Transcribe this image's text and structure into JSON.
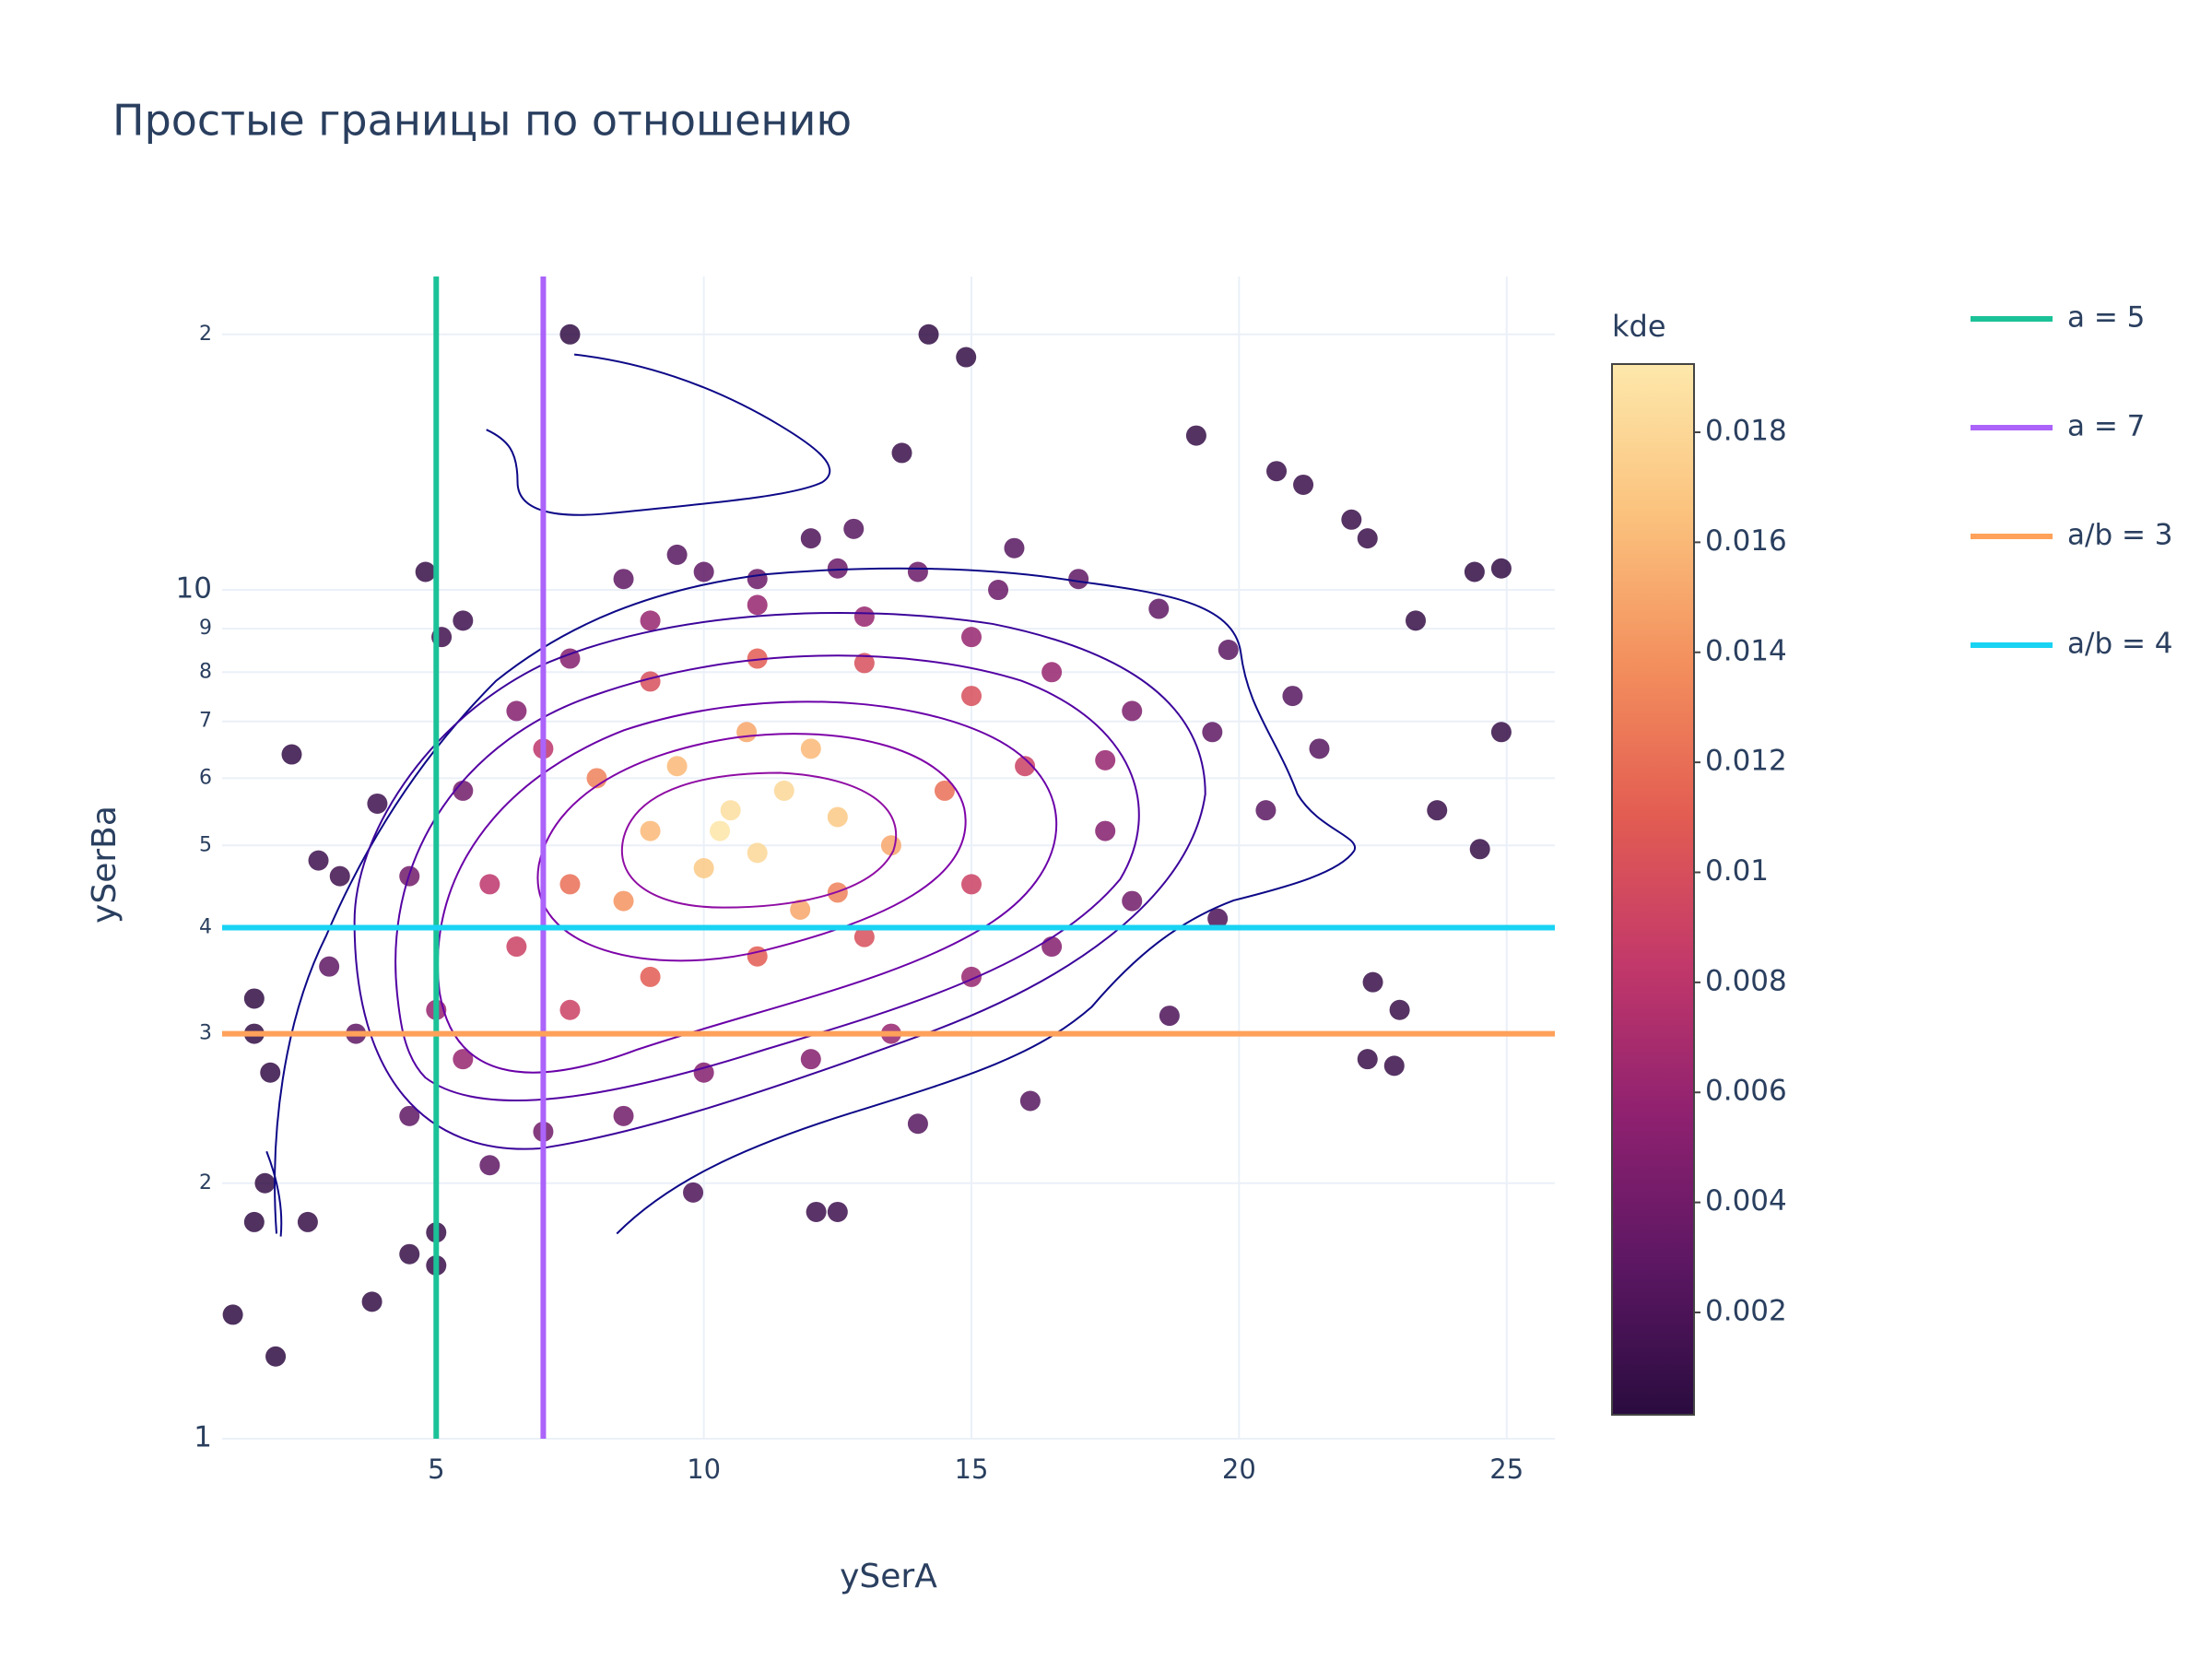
{
  "chart_data": {
    "type": "scatter",
    "title": "Простые границы по отношению",
    "x_label": "ySerA",
    "y_label": "ySerBa",
    "xlim": [
      1,
      25.9
    ],
    "xticks": [
      5,
      10,
      15,
      20,
      25
    ],
    "ylim": [
      1,
      23.4
    ],
    "y_log": true,
    "yticks": [
      1,
      2,
      3,
      4,
      5,
      6,
      7,
      8,
      9,
      10,
      {
        "value": 20,
        "label": "2"
      }
    ],
    "grid": true,
    "x": [
      7.5,
      14.2,
      14.9,
      19.2,
      13.7,
      12,
      4.8,
      5.5,
      5.1,
      24.4,
      24.9,
      23.3,
      22.4,
      22.1,
      20.7,
      21.2,
      2.3,
      1.6,
      1.6,
      1.9,
      1.8,
      1.6,
      1.2,
      2.0,
      3.8,
      5.0,
      5.0,
      4.5,
      2.6,
      12.1,
      12.5,
      9.8,
      23.7,
      24.5,
      23.0,
      22.5,
      22.4,
      22.9,
      24.9,
      19.6,
      18.7,
      16.1,
      14.0,
      3.9,
      2.8,
      3.2,
      8.5,
      10,
      11,
      12.5,
      14,
      15.5,
      17,
      18.5,
      19.8,
      21,
      21.5,
      20.5,
      19.5,
      18,
      17.5,
      18,
      16.5,
      15,
      13.5,
      12,
      10,
      8.5,
      7,
      6,
      4.5,
      3.5,
      3.0,
      4.5,
      5.5,
      6.5,
      7.5,
      9,
      11,
      13,
      15,
      16.5,
      17.5,
      12.8,
      15.8,
      9.5,
      7,
      6,
      5,
      5.5,
      7.5,
      9,
      11,
      13,
      15,
      16,
      15,
      13,
      11,
      9,
      8,
      7.5,
      6.5,
      14.5,
      12.5,
      9,
      9.5,
      10.5,
      11,
      11.5,
      10,
      12,
      12.5,
      10.8,
      13.5,
      8.5,
      11.8,
      10.3
    ],
    "y": [
      20,
      20,
      18.8,
      15.2,
      14.5,
      11.5,
      10.5,
      9.2,
      8.8,
      10.5,
      10.6,
      9.2,
      11.5,
      12.1,
      13.8,
      13.3,
      6.4,
      3.3,
      3.0,
      2.7,
      2.0,
      1.8,
      1.4,
      1.25,
      1.45,
      1.75,
      1.6,
      1.65,
      1.8,
      1.85,
      1.85,
      1.95,
      5.5,
      4.95,
      3.2,
      3.45,
      2.8,
      2.75,
      6.8,
      4.1,
      3.15,
      2.5,
      2.35,
      5.6,
      4.8,
      4.6,
      10.3,
      10.5,
      10.3,
      10.6,
      10.5,
      10,
      10.3,
      9.5,
      8.5,
      7.5,
      6.5,
      5.5,
      6.8,
      7.2,
      5.2,
      4.3,
      3.8,
      3.5,
      3.0,
      2.8,
      2.7,
      2.4,
      2.3,
      2.1,
      2.4,
      3.0,
      3.6,
      4.6,
      5.8,
      7.2,
      8.3,
      9.2,
      9.6,
      9.3,
      8.8,
      8.0,
      6.3,
      11.8,
      11.2,
      11,
      6.5,
      4.5,
      3.2,
      2.8,
      3.2,
      3.5,
      3.7,
      3.9,
      4.5,
      6.2,
      7.5,
      8.2,
      8.3,
      7.8,
      6.0,
      4.5,
      3.8,
      5.8,
      4.4,
      5.2,
      6.2,
      5.5,
      4.9,
      5.8,
      4.7,
      6.5,
      5.4,
      6.8,
      5.0,
      4.3,
      4.2,
      5.2
    ],
    "color_values": [
      0.0005,
      0.0005,
      0.0006,
      0.0008,
      0.001,
      0.002,
      0.0008,
      0.0012,
      0.0013,
      0.0005,
      0.0005,
      0.0008,
      0.0009,
      0.0009,
      0.001,
      0.001,
      0.0007,
      0.0005,
      0.0006,
      0.0007,
      0.0006,
      0.0005,
      0.0004,
      0.0004,
      0.0006,
      0.0009,
      0.0009,
      0.0008,
      0.0008,
      0.0012,
      0.0012,
      0.002,
      0.0009,
      0.0008,
      0.0009,
      0.0009,
      0.0009,
      0.0009,
      0.0008,
      0.002,
      0.002,
      0.0025,
      0.0025,
      0.0012,
      0.0012,
      0.0013,
      0.003,
      0.003,
      0.0035,
      0.0035,
      0.0035,
      0.0035,
      0.003,
      0.003,
      0.0028,
      0.0025,
      0.0025,
      0.0028,
      0.003,
      0.0045,
      0.005,
      0.004,
      0.005,
      0.006,
      0.006,
      0.005,
      0.005,
      0.004,
      0.004,
      0.003,
      0.003,
      0.003,
      0.003,
      0.004,
      0.004,
      0.005,
      0.005,
      0.006,
      0.006,
      0.006,
      0.006,
      0.006,
      0.006,
      0.0025,
      0.0025,
      0.0025,
      0.008,
      0.008,
      0.006,
      0.006,
      0.009,
      0.011,
      0.011,
      0.01,
      0.009,
      0.009,
      0.01,
      0.01,
      0.011,
      0.01,
      0.013,
      0.012,
      0.009,
      0.012,
      0.013,
      0.016,
      0.016,
      0.0185,
      0.018,
      0.018,
      0.017,
      0.016,
      0.017,
      0.015,
      0.015,
      0.014,
      0.015,
      0.019
    ],
    "colorbar": {
      "title": "kde",
      "clim": [
        0.00014,
        0.01924
      ],
      "ticks": [
        0.002,
        0.004,
        0.006,
        0.008,
        0.01,
        0.012,
        0.014,
        0.016,
        0.018
      ],
      "colorscale": [
        "#2a0c3f",
        "#5c1763",
        "#8f2170",
        "#c2386a",
        "#e35d52",
        "#f38f5d",
        "#fbc27d",
        "#fde8ab"
      ]
    },
    "lines": [
      {
        "name": "a = 5",
        "color": "#1bc298",
        "x": 5
      },
      {
        "name": "a = 7",
        "color": "#ab63fa",
        "x": 7
      },
      {
        "name": "a/b = 3",
        "color": "#ffa15a",
        "y": 3
      },
      {
        "name": "a/b = 4",
        "color": "#19d3f3",
        "y": 4
      }
    ],
    "legend_position": "right"
  }
}
